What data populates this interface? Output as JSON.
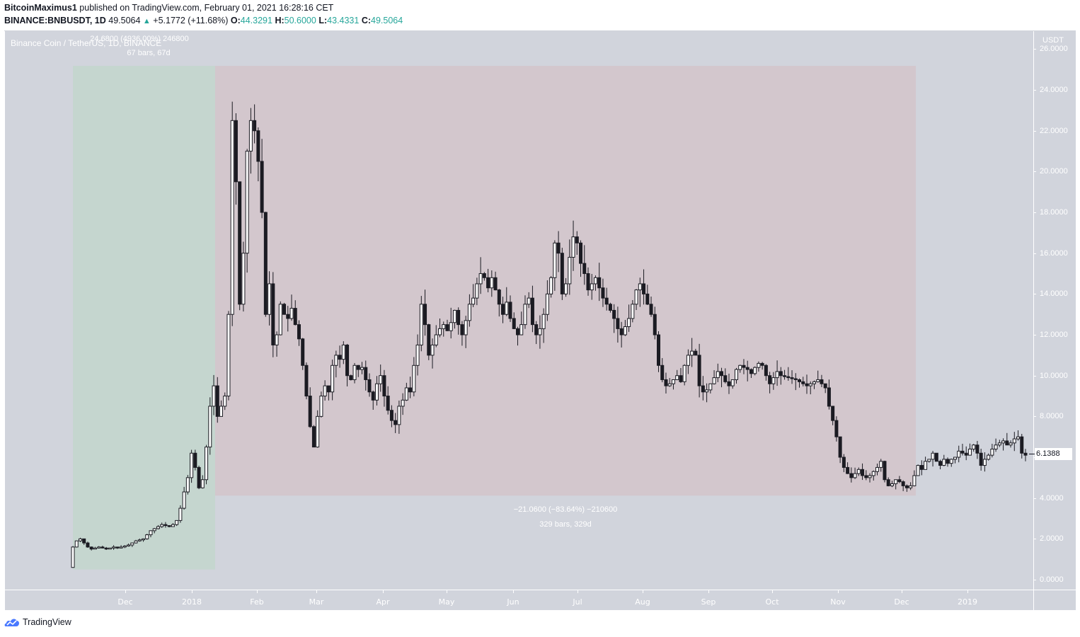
{
  "header": {
    "author": "BitcoinMaximus1",
    "published_text": "published on TradingView.com, February 01, 2021 16:28:16 CET",
    "symbol": "BINANCE:BNBUSDT, 1D",
    "last": "49.5064",
    "change": "+5.1772 (+11.68%)",
    "o_label": "O:",
    "o": "44.3291",
    "h_label": "H:",
    "h": "50.6000",
    "l_label": "L:",
    "l": "43.4331",
    "c_label": "C:",
    "c": "49.5064"
  },
  "chart": {
    "symbol_title": "Binance Coin / TetherUS, 1D, BINANCE",
    "currency": "USDT",
    "current_price_tag": "6.1388",
    "colors": {
      "background": "#d1d4dc",
      "up_zone": "#c5d6cf",
      "down_zone": "#d3c7cd",
      "candle": "#1b1b22",
      "candle_up_fill": "#ffffff",
      "accent_teal": "#26a69a"
    },
    "measure_up": {
      "line1": "24.6800 (4936.00%) 246800",
      "line2": "67 bars, 67d"
    },
    "measure_down": {
      "line1": "−21.0600 (−83.64%) −210600",
      "line2": "329 bars, 329d"
    }
  },
  "footer": {
    "brand": "TradingView",
    "logo_icon": "tradingview-cloud-icon"
  },
  "chart_data": {
    "type": "candlestick",
    "title": "Binance Coin / TetherUS, 1D, BINANCE",
    "xlabel": "",
    "ylabel": "USDT",
    "ylim": [
      0,
      26
    ],
    "y_ticks": [
      "0.0000",
      "2.0000",
      "4.0000",
      "6.0000",
      "8.0000",
      "10.0000",
      "12.0000",
      "14.0000",
      "16.0000",
      "18.0000",
      "20.0000",
      "22.0000",
      "24.0000",
      "26.0000"
    ],
    "x_ticks": [
      "Dec",
      "2018",
      "Feb",
      "Mar",
      "Apr",
      "May",
      "Jun",
      "Jul",
      "Aug",
      "Sep",
      "Oct",
      "Nov",
      "Dec",
      "2019"
    ],
    "grid": false,
    "annotations": [
      {
        "type": "price_range_up",
        "from": 0.5,
        "to": 25.18,
        "text": "24.6800 (4936.00%) 246800",
        "bars": "67 bars, 67d"
      },
      {
        "type": "price_range_down",
        "from": 25.18,
        "to": 4.12,
        "text": "−21.0600 (−83.64%) −210600",
        "bars": "329 bars, 329d"
      }
    ],
    "last_price": 6.1388,
    "approx_closes": [
      1.6,
      1.9,
      2.0,
      1.8,
      1.6,
      1.5,
      1.55,
      1.6,
      1.55,
      1.5,
      1.55,
      1.6,
      1.55,
      1.6,
      1.65,
      1.7,
      1.8,
      1.9,
      1.95,
      2.0,
      2.2,
      2.4,
      2.5,
      2.6,
      2.7,
      2.65,
      2.6,
      2.7,
      2.9,
      3.5,
      4.3,
      5.0,
      6.2,
      5.5,
      4.5,
      4.9,
      6.5,
      8.5,
      9.5,
      8.0,
      8.5,
      9.0,
      13.0,
      22.5,
      19.5,
      13.5,
      16.0,
      21.0,
      22.5,
      22.0,
      20.5,
      18.0,
      13.0,
      14.5,
      11.5,
      12.0,
      13.5,
      13.0,
      12.8,
      13.3,
      12.5,
      11.8,
      10.5,
      9.0,
      7.5,
      6.5,
      8.0,
      9.0,
      9.5,
      9.2,
      10.5,
      11.0,
      10.8,
      11.5,
      10.0,
      9.8,
      10.5,
      10.3,
      10.4,
      9.8,
      9.2,
      8.8,
      9.6,
      10.0,
      9.0,
      8.3,
      7.8,
      7.6,
      8.5,
      8.8,
      9.4,
      9.2,
      10.5,
      11.5,
      13.5,
      12.5,
      11.0,
      11.5,
      12.0,
      12.3,
      12.5,
      12.2,
      12.6,
      13.2,
      12.5,
      12.0,
      12.7,
      13.5,
      13.8,
      14.5,
      15.0,
      14.8,
      14.3,
      14.8,
      14.2,
      13.5,
      13.0,
      13.6,
      12.8,
      12.3,
      12.0,
      12.5,
      13.5,
      13.8,
      12.5,
      12.0,
      12.3,
      13.0,
      14.0,
      14.8,
      16.5,
      16.0,
      14.0,
      14.5,
      15.8,
      16.8,
      16.5,
      15.5,
      15.0,
      14.2,
      14.5,
      14.8,
      14.3,
      13.8,
      13.5,
      13.2,
      12.8,
      12.3,
      12.0,
      12.4,
      12.8,
      13.5,
      14.2,
      14.5,
      14.0,
      13.5,
      13.0,
      12.0,
      10.5,
      9.8,
      9.5,
      9.6,
      9.8,
      10.0,
      9.7,
      10.5,
      11.0,
      11.2,
      11.0,
      9.5,
      9.2,
      9.3,
      9.6,
      9.9,
      10.2,
      10.0,
      9.7,
      9.5,
      9.8,
      10.3,
      10.5,
      10.4,
      10.3,
      10.1,
      10.4,
      10.6,
      10.5,
      10.0,
      9.6,
      9.9,
      10.2,
      10.0,
      9.95,
      9.9,
      9.85,
      9.8,
      9.7,
      9.6,
      9.5,
      9.6,
      9.7,
      9.8,
      9.6,
      9.4,
      8.5,
      7.8,
      7.0,
      6.0,
      5.5,
      5.2,
      5.0,
      5.2,
      5.4,
      5.1,
      5.0,
      5.1,
      5.3,
      5.5,
      5.8,
      4.9,
      4.6,
      4.7,
      4.9,
      4.8,
      4.6,
      4.5,
      4.6,
      5.1,
      5.6,
      5.4,
      5.8,
      5.9,
      6.2,
      5.8,
      5.6,
      5.9,
      5.7,
      5.9,
      6.0,
      6.3,
      6.2,
      6.1,
      6.4,
      6.6,
      6.2,
      5.6,
      5.9,
      6.1,
      6.4,
      6.6,
      6.7,
      6.8,
      6.6,
      6.7,
      6.9,
      7.0,
      6.2,
      6.1
    ]
  }
}
